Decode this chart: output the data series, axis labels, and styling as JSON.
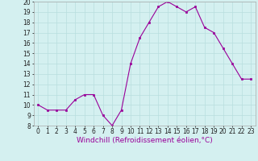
{
  "hours": [
    0,
    1,
    2,
    3,
    4,
    5,
    6,
    7,
    8,
    9,
    10,
    11,
    12,
    13,
    14,
    15,
    16,
    17,
    18,
    19,
    20,
    21,
    22,
    23
  ],
  "values": [
    10,
    9.5,
    9.5,
    9.5,
    10.5,
    11,
    11,
    9,
    8,
    9.5,
    14,
    16.5,
    18,
    19.5,
    20,
    19.5,
    19,
    19.5,
    17.5,
    17,
    15.5,
    14,
    12.5,
    12.5
  ],
  "xlabel": "Windchill (Refroidissement éolien,°C)",
  "ylim": [
    8,
    20
  ],
  "xlim_min": -0.5,
  "xlim_max": 23.5,
  "yticks": [
    8,
    9,
    10,
    11,
    12,
    13,
    14,
    15,
    16,
    17,
    18,
    19,
    20
  ],
  "xticks": [
    0,
    1,
    2,
    3,
    4,
    5,
    6,
    7,
    8,
    9,
    10,
    11,
    12,
    13,
    14,
    15,
    16,
    17,
    18,
    19,
    20,
    21,
    22,
    23
  ],
  "line_color": "#990099",
  "marker_color": "#990099",
  "bg_color": "#d4f0f0",
  "grid_color": "#b8dede",
  "xlabel_fontsize": 6.5,
  "tick_fontsize": 5.5
}
